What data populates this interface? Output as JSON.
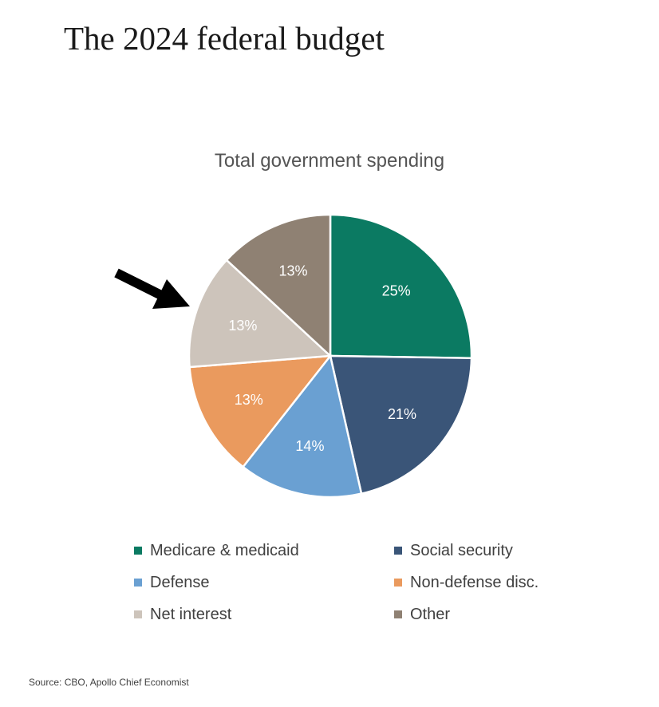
{
  "headline": "The 2024 federal budget",
  "chart_data": {
    "type": "pie",
    "title": "Total government spending",
    "slices": [
      {
        "label": "Medicare & medicaid",
        "value": 25,
        "value_label": "25%",
        "color": "#0b7a62"
      },
      {
        "label": "Social security",
        "value": 21,
        "value_label": "21%",
        "color": "#3a5578"
      },
      {
        "label": "Defense",
        "value": 14,
        "value_label": "14%",
        "color": "#6aa0d2"
      },
      {
        "label": "Non-defense disc.",
        "value": 13,
        "value_label": "13%",
        "color": "#ea9a5e"
      },
      {
        "label": "Net interest",
        "value": 13,
        "value_label": "13%",
        "color": "#cdc4bb"
      },
      {
        "label": "Other",
        "value": 13,
        "value_label": "13%",
        "color": "#8f8173"
      }
    ],
    "legend_position": "bottom",
    "annotation": {
      "type": "arrow",
      "points_to": "Net interest",
      "color": "#000000"
    }
  },
  "source": "Source: CBO, Apollo Chief Economist"
}
